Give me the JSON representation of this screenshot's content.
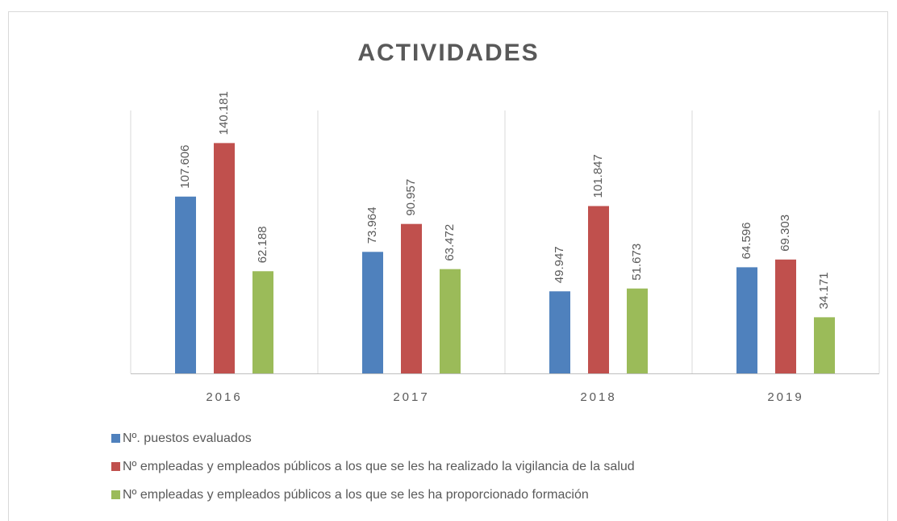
{
  "chart_data": {
    "type": "bar",
    "title": "ACTIVIDADES",
    "categories": [
      "2016",
      "2017",
      "2018",
      "2019"
    ],
    "series": [
      {
        "name": "Nº. puestos evaluados",
        "color": "#4f81bd",
        "values": [
          107606,
          73964,
          49947,
          64596
        ],
        "value_labels": [
          "107.606",
          "73.964",
          "49.947",
          "64.596"
        ]
      },
      {
        "name": "Nº empleadas y empleados públicos a los que se les ha realizado la vigilancia de la salud",
        "color": "#c0504d",
        "values": [
          140181,
          90957,
          101847,
          69303
        ],
        "value_labels": [
          "140.181",
          "90.957",
          "101.847",
          "69.303"
        ]
      },
      {
        "name": "Nº empleadas y empleados públicos a los que se les ha proporcionado formación",
        "color": "#9bbb59",
        "values": [
          62188,
          63472,
          51673,
          34171
        ],
        "value_labels": [
          "62.188",
          "63.472",
          "51.673",
          "34.171"
        ]
      }
    ],
    "ylim": [
      0,
      160000
    ],
    "legend": "bottom"
  }
}
